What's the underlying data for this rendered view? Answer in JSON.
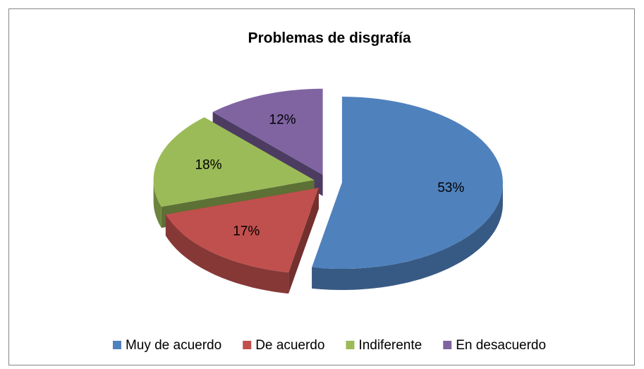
{
  "chart_data": {
    "type": "pie3d",
    "title": "Problemas de disgrafía",
    "categories": [
      "Muy de acuerdo",
      "De acuerdo",
      "Indiferente",
      "En desacuerdo"
    ],
    "values": [
      53,
      17,
      18,
      12
    ],
    "value_labels": [
      "53%",
      "17%",
      "18%",
      "12%"
    ],
    "colors": [
      "#4f81bd",
      "#c0504d",
      "#9bbb59",
      "#8064a2"
    ],
    "legend": "bottom"
  }
}
